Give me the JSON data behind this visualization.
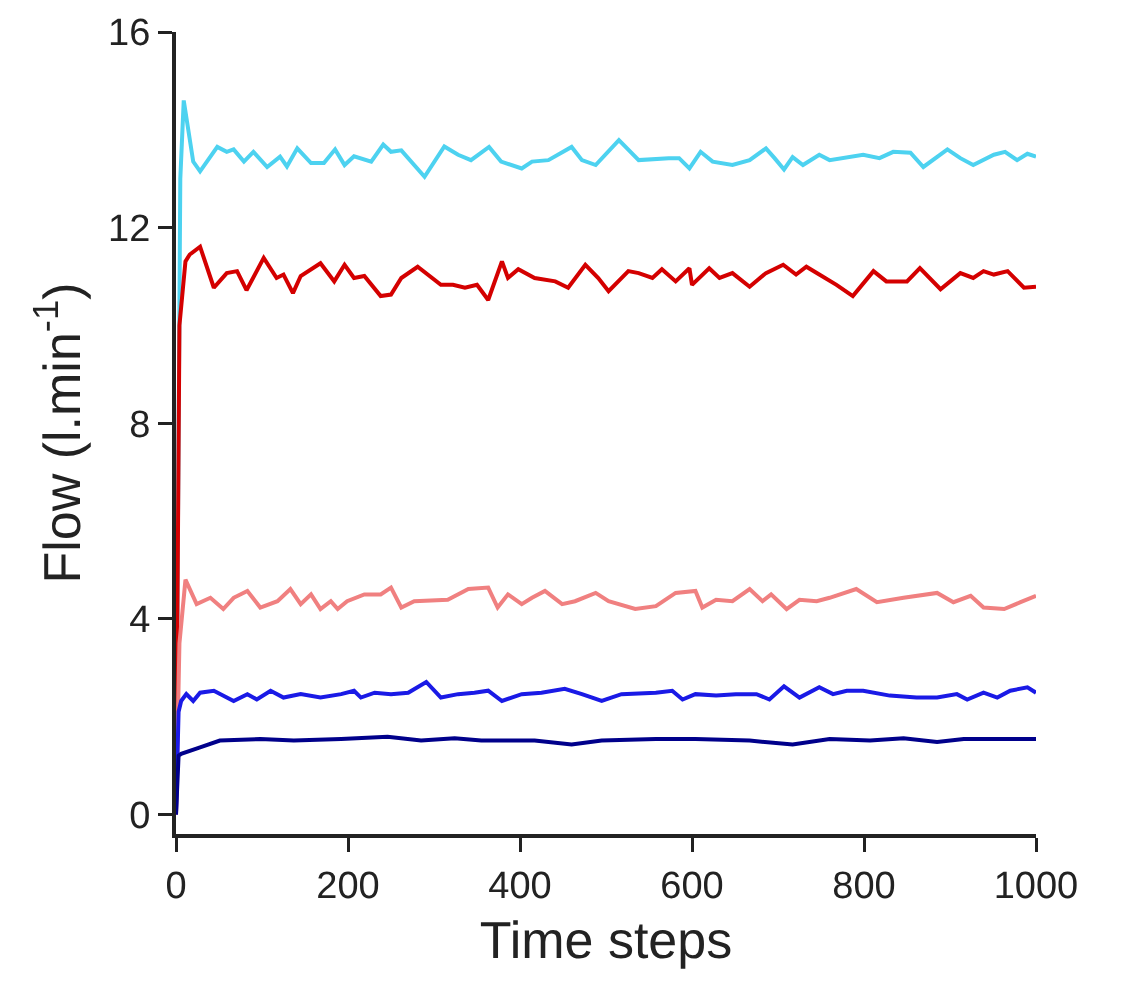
{
  "chart_data": {
    "type": "line",
    "xlabel": "Time steps",
    "ylabel": "Flow (l.min$^{-1}$)",
    "xlim": [
      0,
      1000
    ],
    "ylim": [
      -0.4,
      16
    ],
    "xticks": [
      0,
      200,
      400,
      600,
      800,
      1000
    ],
    "yticks": [
      0,
      4,
      8,
      12,
      16
    ],
    "grid": false,
    "marker": "none",
    "line_style": "solid",
    "series": [
      {
        "color": "#4dd2f0",
        "x": [
          0,
          5,
          9,
          20,
          28,
          48,
          59,
          67,
          79,
          90,
          106,
          121,
          129,
          141,
          157,
          172,
          185,
          196,
          207,
          227,
          241,
          250,
          262,
          289,
          312,
          328,
          343,
          364,
          378,
          402,
          414,
          433,
          460,
          472,
          488,
          515,
          538,
          573,
          585,
          597,
          610,
          624,
          647,
          667,
          686,
          696,
          707,
          717,
          729,
          748,
          760,
          799,
          818,
          834,
          854,
          869,
          897,
          912,
          927,
          951,
          964,
          978,
          990,
          1000
        ],
        "values": [
          0,
          13,
          14.6,
          13.35,
          13.15,
          13.65,
          13.55,
          13.6,
          13.35,
          13.55,
          13.24,
          13.45,
          13.25,
          13.62,
          13.32,
          13.32,
          13.6,
          13.28,
          13.46,
          13.35,
          13.7,
          13.55,
          13.58,
          13.04,
          13.66,
          13.49,
          13.38,
          13.65,
          13.35,
          13.21,
          13.35,
          13.38,
          13.65,
          13.38,
          13.28,
          13.79,
          13.38,
          13.42,
          13.42,
          13.21,
          13.55,
          13.35,
          13.28,
          13.38,
          13.62,
          13.42,
          13.19,
          13.44,
          13.28,
          13.49,
          13.38,
          13.49,
          13.42,
          13.55,
          13.53,
          13.24,
          13.6,
          13.42,
          13.28,
          13.49,
          13.55,
          13.38,
          13.51,
          13.45
        ]
      },
      {
        "color": "#d40000",
        "x": [
          0,
          4,
          11,
          16,
          28,
          44,
          59,
          71,
          82,
          102,
          117,
          125,
          136,
          145,
          168,
          184,
          196,
          207,
          219,
          238,
          250,
          262,
          281,
          308,
          322,
          336,
          350,
          363,
          379,
          386,
          398,
          417,
          441,
          456,
          476,
          491,
          503,
          526,
          538,
          554,
          565,
          581,
          597,
          600,
          620,
          632,
          647,
          667,
          686,
          706,
          721,
          733,
          748,
          768,
          787,
          811,
          826,
          850,
          865,
          889,
          912,
          927,
          939,
          951,
          967,
          986,
          1000
        ],
        "values": [
          0,
          10,
          11.31,
          11.45,
          11.61,
          10.77,
          11.07,
          11.11,
          10.72,
          11.38,
          10.97,
          11.04,
          10.66,
          11.01,
          11.27,
          10.9,
          11.24,
          10.97,
          11.01,
          10.6,
          10.63,
          10.97,
          11.2,
          10.83,
          10.83,
          10.77,
          10.83,
          10.52,
          11.31,
          10.97,
          11.15,
          10.97,
          10.9,
          10.77,
          11.24,
          10.97,
          10.7,
          11.11,
          11.07,
          10.97,
          11.15,
          10.9,
          11.17,
          10.83,
          11.17,
          10.97,
          11.07,
          10.79,
          11.07,
          11.24,
          11.04,
          11.2,
          11.04,
          10.83,
          10.6,
          11.11,
          10.9,
          10.9,
          11.17,
          10.74,
          11.07,
          10.97,
          11.11,
          11.04,
          11.11,
          10.77,
          10.79
        ]
      },
      {
        "color": "#f08080",
        "x": [
          0,
          4,
          11,
          24,
          40,
          55,
          67,
          83,
          98,
          118,
          133,
          145,
          157,
          168,
          180,
          188,
          199,
          219,
          238,
          250,
          262,
          277,
          316,
          340,
          363,
          374,
          386,
          402,
          414,
          429,
          449,
          464,
          488,
          503,
          534,
          558,
          581,
          604,
          612,
          628,
          647,
          667,
          682,
          692,
          710,
          725,
          745,
          760,
          791,
          815,
          846,
          885,
          904,
          924,
          939,
          963,
          982,
          1000
        ],
        "values": [
          0,
          3.5,
          4.8,
          4.3,
          4.43,
          4.2,
          4.43,
          4.57,
          4.23,
          4.36,
          4.61,
          4.3,
          4.5,
          4.2,
          4.36,
          4.2,
          4.36,
          4.5,
          4.5,
          4.64,
          4.23,
          4.36,
          4.39,
          4.61,
          4.64,
          4.23,
          4.5,
          4.3,
          4.43,
          4.57,
          4.3,
          4.36,
          4.53,
          4.36,
          4.2,
          4.26,
          4.53,
          4.57,
          4.23,
          4.39,
          4.36,
          4.61,
          4.36,
          4.5,
          4.2,
          4.39,
          4.36,
          4.43,
          4.61,
          4.34,
          4.43,
          4.53,
          4.34,
          4.47,
          4.23,
          4.2,
          4.34,
          4.47
        ]
      },
      {
        "color": "#1a1ae6",
        "x": [
          0,
          3,
          6,
          12,
          20,
          28,
          44,
          67,
          83,
          94,
          110,
          125,
          145,
          168,
          192,
          207,
          215,
          231,
          250,
          270,
          291,
          308,
          328,
          347,
          363,
          379,
          402,
          425,
          452,
          472,
          495,
          518,
          558,
          577,
          589,
          604,
          628,
          651,
          675,
          690,
          707,
          725,
          748,
          764,
          780,
          799,
          830,
          861,
          885,
          908,
          920,
          939,
          955,
          970,
          990,
          1000
        ],
        "values": [
          0,
          2.1,
          2.32,
          2.46,
          2.32,
          2.49,
          2.53,
          2.32,
          2.46,
          2.35,
          2.53,
          2.39,
          2.46,
          2.39,
          2.46,
          2.53,
          2.39,
          2.49,
          2.46,
          2.49,
          2.71,
          2.39,
          2.46,
          2.49,
          2.53,
          2.32,
          2.46,
          2.49,
          2.57,
          2.46,
          2.32,
          2.46,
          2.49,
          2.53,
          2.35,
          2.46,
          2.43,
          2.46,
          2.46,
          2.35,
          2.62,
          2.39,
          2.6,
          2.46,
          2.53,
          2.53,
          2.43,
          2.39,
          2.39,
          2.46,
          2.35,
          2.49,
          2.39,
          2.53,
          2.6,
          2.49
        ]
      },
      {
        "color": "#00008b",
        "x": [
          0,
          3,
          6,
          28,
          51,
          98,
          137,
          192,
          246,
          285,
          324,
          355,
          417,
          460,
          495,
          558,
          604,
          667,
          717,
          760,
          807,
          846,
          885,
          916,
          955,
          1000
        ],
        "values": [
          0,
          1.2,
          1.24,
          1.37,
          1.51,
          1.54,
          1.51,
          1.54,
          1.59,
          1.51,
          1.56,
          1.51,
          1.51,
          1.43,
          1.51,
          1.54,
          1.54,
          1.51,
          1.43,
          1.54,
          1.51,
          1.56,
          1.48,
          1.54,
          1.54,
          1.54
        ]
      }
    ]
  }
}
